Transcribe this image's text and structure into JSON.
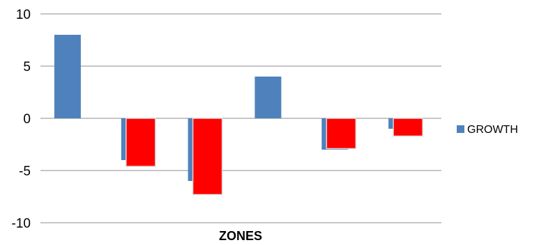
{
  "chart_data": {
    "type": "bar",
    "xlabel": "ZONES",
    "ylabel": "",
    "ylim": [
      -10,
      10
    ],
    "y_ticks": [
      10,
      5,
      0,
      -5,
      -10
    ],
    "y_tick_labels": [
      "10",
      "5",
      "0",
      "-5",
      "-10"
    ],
    "grid": true,
    "legend_position": "right",
    "series": [
      {
        "name": "GROWTH",
        "values": [
          8,
          -4,
          -6,
          4,
          -3,
          -1
        ],
        "color": "#4f81bd"
      },
      {
        "values": [
          null,
          -4.6,
          -7.3,
          null,
          -2.9,
          -1.7
        ],
        "color": "#ff0000"
      }
    ]
  }
}
